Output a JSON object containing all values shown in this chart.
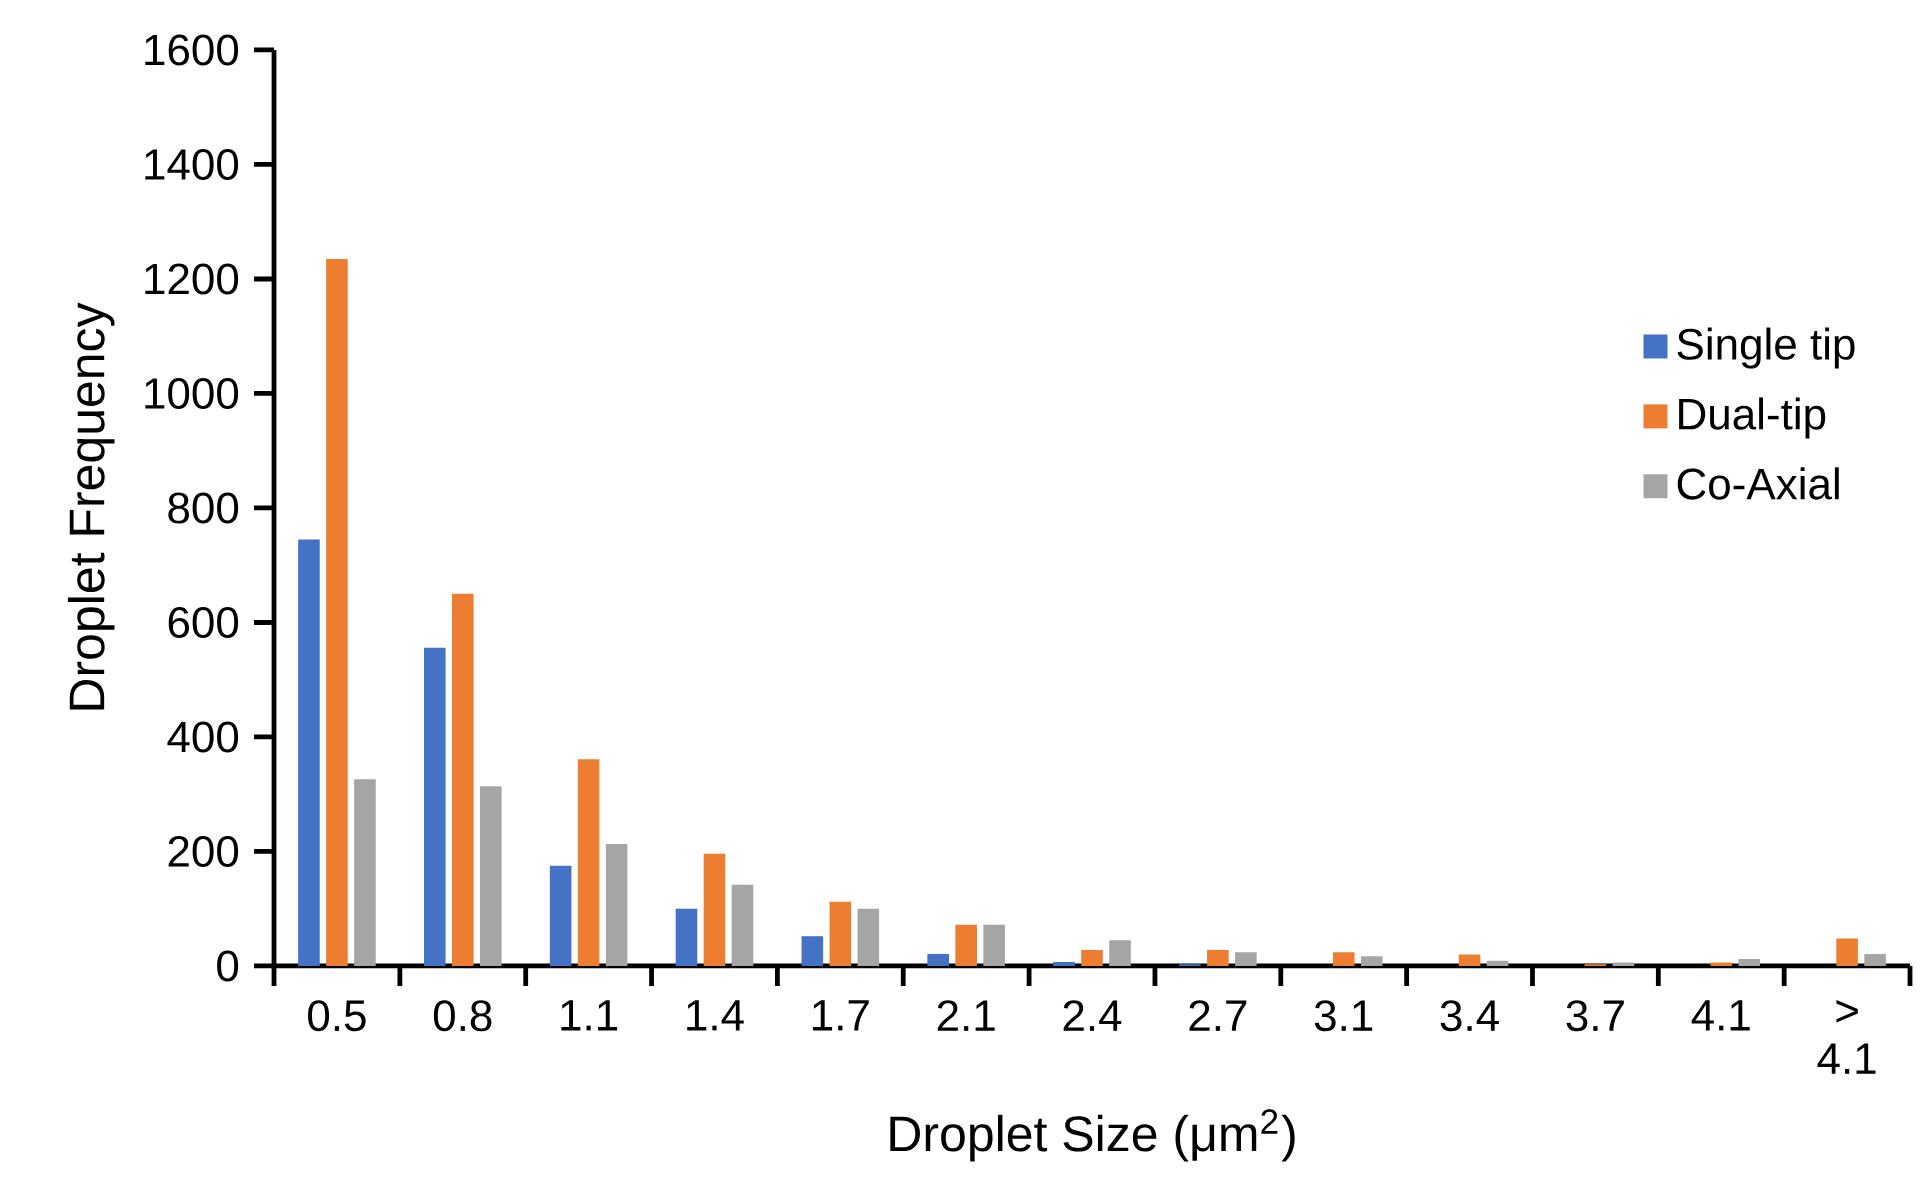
{
  "chart_data": {
    "type": "bar",
    "xlabel": "Droplet Size (μm$^{2}$)",
    "ylabel": "Droplet Frequency",
    "categories": [
      "0.5",
      "0.8",
      "1.1",
      "1.4",
      "1.7",
      "2.1",
      "2.4",
      "2.7",
      "3.1",
      "3.4",
      "3.7",
      "4.1",
      "> 4.1"
    ],
    "series": [
      {
        "name": "Single tip",
        "color": "#4472c4",
        "values": [
          745,
          556,
          175,
          100,
          52,
          21,
          7,
          3,
          0,
          0,
          0,
          0,
          0
        ]
      },
      {
        "name": "Dual-tip",
        "color": "#ed7d31",
        "values": [
          1235,
          650,
          361,
          196,
          112,
          72,
          28,
          28,
          24,
          20,
          3,
          6,
          48
        ]
      },
      {
        "name": "Co-Axial",
        "color": "#a5a5a5",
        "values": [
          326,
          314,
          213,
          142,
          100,
          72,
          45,
          24,
          17,
          9,
          6,
          12,
          21
        ]
      }
    ],
    "ylim": [
      0,
      1600
    ],
    "yticks": [
      0,
      200,
      400,
      600,
      800,
      1000,
      1200,
      1400,
      1600
    ],
    "legend": "right"
  }
}
